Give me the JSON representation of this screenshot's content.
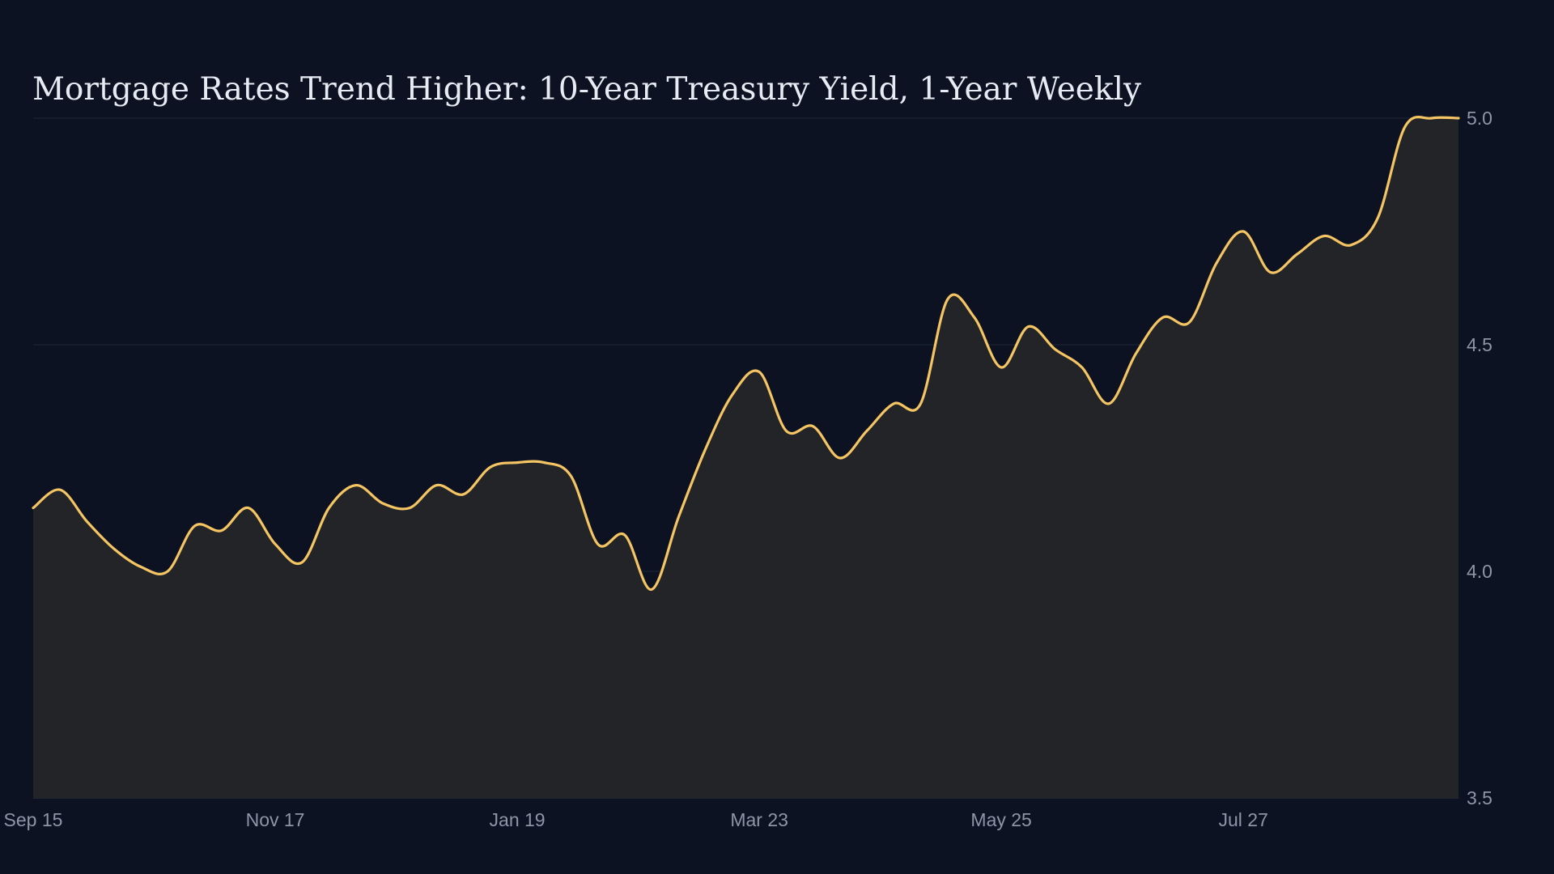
{
  "chart_data": {
    "type": "area",
    "title": "Mortgage Rates Trend Higher: 10-Year Treasury Yield, 1-Year Weekly",
    "xlabel": "",
    "ylabel": "",
    "ylim": [
      3.5,
      5.0
    ],
    "y_ticks": [
      "3.5",
      "4.0",
      "4.5",
      "5.0"
    ],
    "y_tick_values": [
      3.5,
      4.0,
      4.5,
      5.0
    ],
    "y_axis_side": "right",
    "x_tick_labels": [
      "Sep 15",
      "Nov 17",
      "Jan 19",
      "Mar 23",
      "May 25",
      "Jul 27"
    ],
    "x_tick_indices": [
      0,
      9,
      18,
      27,
      36,
      45
    ],
    "grid": "horizontal",
    "line_color": "#f5c563",
    "area_color": "#222428",
    "background": "#0c1222",
    "series": [
      {
        "values": [
          4.14,
          4.18,
          4.11,
          4.05,
          4.01,
          4.0,
          4.1,
          4.09,
          4.14,
          4.06,
          4.02,
          4.14,
          4.19,
          4.15,
          4.14,
          4.19,
          4.17,
          4.23,
          4.24,
          4.24,
          4.21,
          4.06,
          4.08,
          3.96,
          4.12,
          4.27,
          4.39,
          4.44,
          4.31,
          4.32,
          4.25,
          4.31,
          4.37,
          4.37,
          4.6,
          4.56,
          4.45,
          4.54,
          4.49,
          4.45,
          4.37,
          4.48,
          4.56,
          4.55,
          4.68,
          4.75,
          4.66,
          4.7,
          4.74,
          4.72,
          4.78,
          4.98,
          5.0,
          5.0
        ]
      }
    ]
  }
}
